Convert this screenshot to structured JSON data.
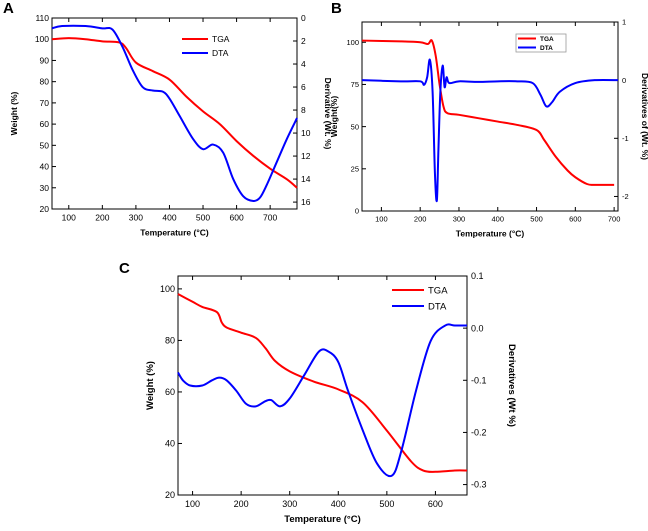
{
  "chart_data": [
    {
      "panel_label": "A",
      "type": "line",
      "xlabel": "Temperature (°C)",
      "ylabel_left": "Weight (%)",
      "ylabel_right": "Derivative (Wt. %)",
      "xlim": [
        50,
        780
      ],
      "ylim_left": [
        20,
        110
      ],
      "ylim_right": [
        0,
        16.6
      ],
      "right_axis_inverted": true,
      "x_ticks": [
        100,
        200,
        300,
        400,
        500,
        600,
        700
      ],
      "y_ticks_left": [
        20,
        30,
        40,
        50,
        60,
        70,
        80,
        90,
        100,
        110
      ],
      "y_ticks_right": [
        0,
        2,
        4,
        6,
        8,
        10,
        12,
        14,
        16
      ],
      "legend": "top-center",
      "series": [
        {
          "name": "TGA",
          "axis": "left",
          "color": "#ff0000",
          "x": [
            50,
            100,
            150,
            200,
            250,
            270,
            300,
            350,
            400,
            450,
            500,
            550,
            600,
            650,
            700,
            750,
            780
          ],
          "y": [
            100,
            100.5,
            100,
            99,
            98.5,
            96,
            89,
            85,
            81,
            73,
            66,
            60,
            52,
            45,
            39,
            34,
            30
          ]
        },
        {
          "name": "DTA",
          "axis": "right",
          "color": "#0000ff",
          "x": [
            50,
            80,
            150,
            200,
            230,
            260,
            290,
            320,
            350,
            380,
            400,
            430,
            470,
            500,
            530,
            560,
            590,
            620,
            650,
            670,
            690,
            720,
            750,
            780
          ],
          "y": [
            0.9,
            0.7,
            0.7,
            0.9,
            1.0,
            2.5,
            4.5,
            6.0,
            6.3,
            6.4,
            7.0,
            8.5,
            10.5,
            11.4,
            11.0,
            11.7,
            14.0,
            15.5,
            15.9,
            15.6,
            14.5,
            12.5,
            10.5,
            8.7
          ]
        }
      ]
    },
    {
      "panel_label": "B",
      "type": "line",
      "xlabel": "Temperature (°C)",
      "ylabel_left": "Weight(%)",
      "ylabel_right": "Derivatives of (Wt. %)",
      "xlim": [
        50,
        710
      ],
      "ylim_left": [
        0,
        112
      ],
      "ylim_right": [
        -2.25,
        1
      ],
      "x_ticks": [
        100,
        200,
        300,
        400,
        500,
        600,
        700
      ],
      "y_ticks_left": [
        0,
        25,
        50,
        75,
        100
      ],
      "y_ticks_right": [
        -2,
        -1,
        0,
        1
      ],
      "legend": "top-center",
      "series": [
        {
          "name": "TGA",
          "axis": "left",
          "color": "#ff0000",
          "x": [
            50,
            150,
            200,
            220,
            230,
            240,
            250,
            260,
            270,
            300,
            350,
            400,
            450,
            500,
            520,
            550,
            580,
            600,
            630,
            650,
            700
          ],
          "y": [
            101,
            100.5,
            100,
            99,
            101,
            92,
            75,
            62,
            58,
            57,
            55,
            53,
            51,
            48,
            42,
            32,
            24,
            20,
            16,
            15.5,
            15.5
          ]
        },
        {
          "name": "DTA",
          "axis": "right",
          "color": "#0000ff",
          "x": [
            50,
            150,
            200,
            210,
            218,
            225,
            232,
            238,
            243,
            247,
            252,
            258,
            263,
            268,
            275,
            300,
            350,
            400,
            450,
            490,
            510,
            525,
            540,
            560,
            600,
            650,
            710
          ],
          "y": [
            0.0,
            -0.02,
            -0.02,
            -0.08,
            0.05,
            0.35,
            -0.2,
            -1.6,
            -2.07,
            -1.2,
            -0.2,
            0.25,
            -0.12,
            0.05,
            -0.05,
            -0.02,
            -0.03,
            -0.02,
            -0.02,
            -0.05,
            -0.25,
            -0.45,
            -0.38,
            -0.2,
            -0.05,
            0.0,
            0.0
          ]
        }
      ]
    },
    {
      "panel_label": "C",
      "type": "line",
      "xlabel": "Temperature (°C)",
      "ylabel_left": "Weight (%)",
      "ylabel_right": "Derivatives (Wt %)",
      "xlim": [
        70,
        665
      ],
      "ylim_left": [
        20,
        105
      ],
      "ylim_right": [
        -0.32,
        0.1
      ],
      "x_ticks": [
        100,
        200,
        300,
        400,
        500,
        600
      ],
      "y_ticks_left": [
        20,
        40,
        60,
        80,
        100
      ],
      "y_ticks_right": [
        -0.3,
        -0.2,
        -0.1,
        0.0,
        0.1
      ],
      "legend": "top-right",
      "series": [
        {
          "name": "TGA",
          "axis": "left",
          "color": "#ff0000",
          "x": [
            70,
            100,
            120,
            150,
            160,
            170,
            200,
            230,
            250,
            270,
            300,
            350,
            400,
            450,
            500,
            550,
            575,
            600,
            640,
            665
          ],
          "y": [
            98,
            95,
            93,
            91,
            87,
            85,
            83,
            81,
            77,
            72,
            68,
            64,
            61,
            56,
            45,
            33,
            29.5,
            29,
            29.5,
            29.5
          ]
        },
        {
          "name": "DTA",
          "axis": "right",
          "color": "#0000ff",
          "x": [
            70,
            80,
            95,
            120,
            140,
            155,
            170,
            190,
            210,
            230,
            250,
            262,
            280,
            300,
            330,
            360,
            380,
            400,
            420,
            450,
            480,
            510,
            530,
            560,
            590,
            620,
            640,
            665
          ],
          "y": [
            -0.085,
            -0.1,
            -0.11,
            -0.11,
            -0.1,
            -0.095,
            -0.1,
            -0.12,
            -0.145,
            -0.15,
            -0.14,
            -0.138,
            -0.15,
            -0.135,
            -0.09,
            -0.045,
            -0.045,
            -0.065,
            -0.12,
            -0.195,
            -0.26,
            -0.283,
            -0.235,
            -0.12,
            -0.025,
            0.005,
            0.005,
            0.005
          ]
        }
      ]
    }
  ]
}
